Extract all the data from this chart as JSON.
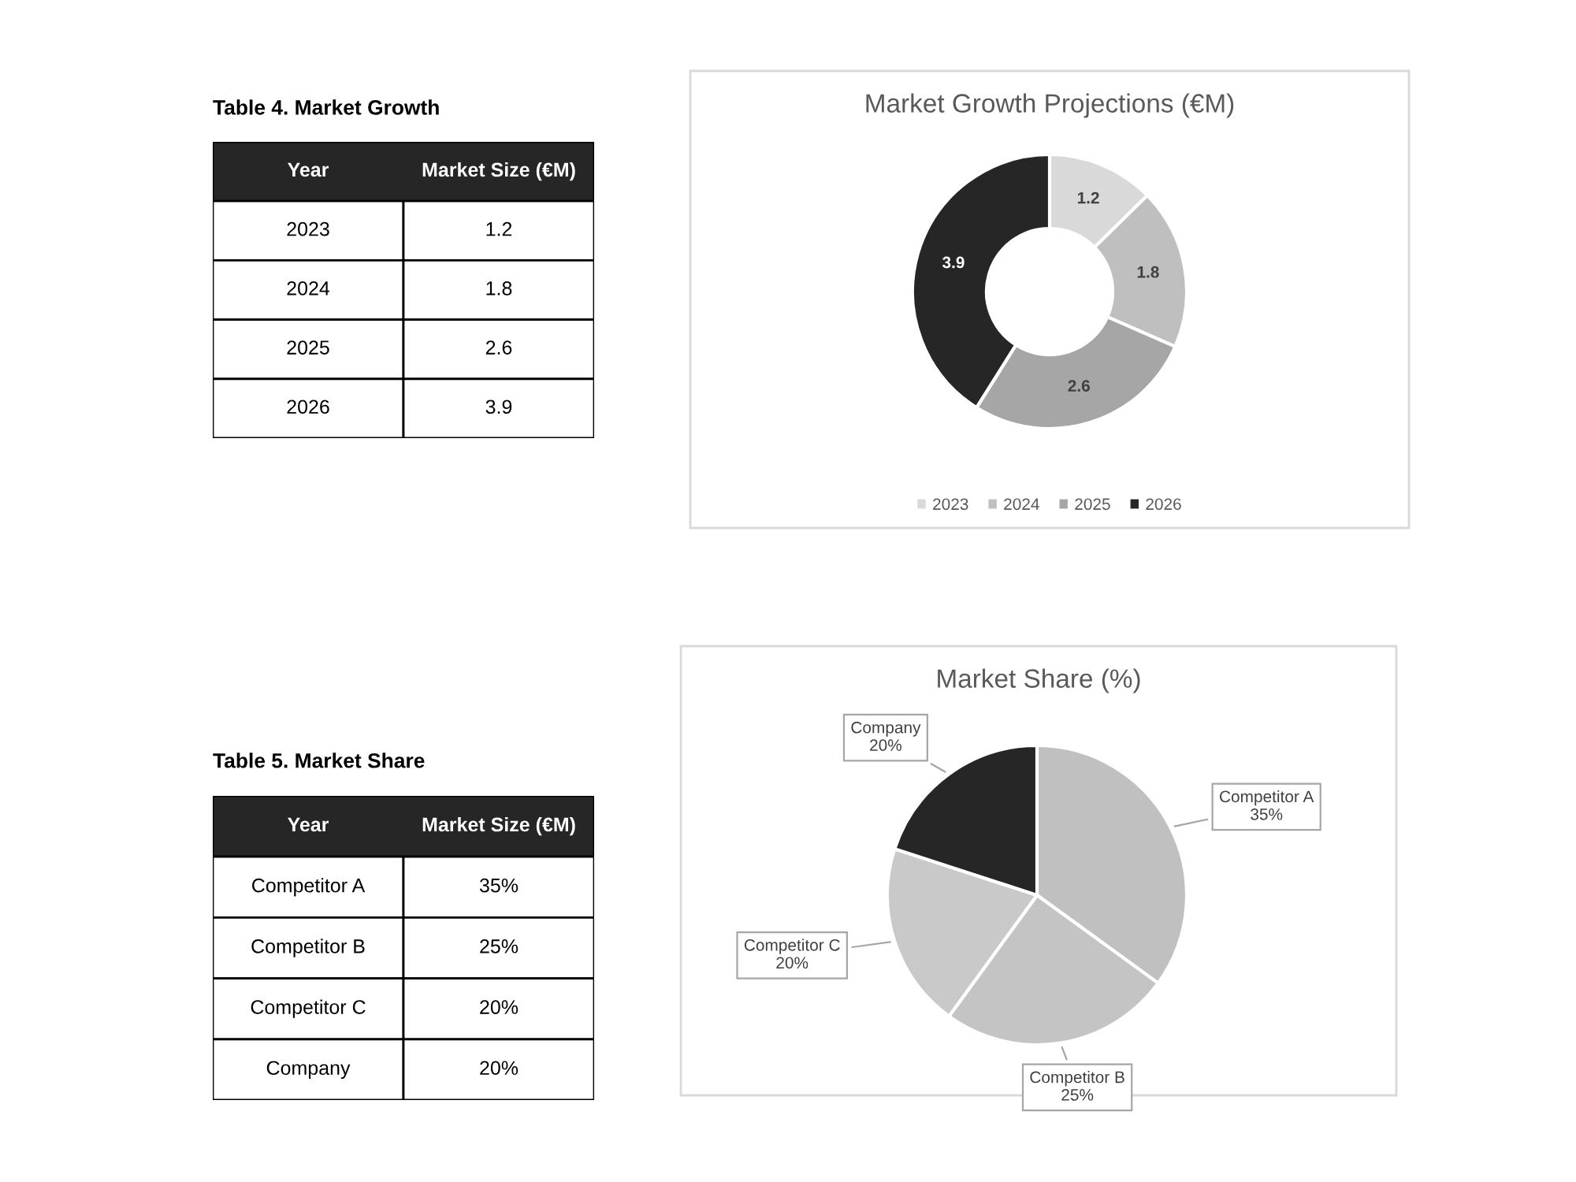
{
  "chart_data": [
    {
      "type": "donut",
      "title": "Market Growth Projections (€M)",
      "annotations": [
        "Table 4. Market Growth",
        "Year",
        "Market Size (€M)",
        "1.2",
        "1.8",
        "2.6",
        "3.9"
      ],
      "categories": [
        "2023",
        "2024",
        "2025",
        "2026"
      ],
      "values": [
        1.2,
        1.8,
        2.6,
        3.9
      ],
      "colors": [
        "#d9d9d9",
        "#bfbfbf",
        "#a6a6a6",
        "#262626"
      ],
      "data_labels": true,
      "legend": "bottom"
    },
    {
      "type": "pie",
      "title": "Market Share (%)",
      "annotations": [
        "Table 5. Market Share",
        "Year",
        "Market Size (€M)"
      ],
      "categories": [
        "Competitor A",
        "Competitor B",
        "Competitor C",
        "Company"
      ],
      "values": [
        35,
        25,
        20,
        20
      ],
      "colors": [
        "#c0c0c0",
        "#c4c4c4",
        "#c9c9c9",
        "#262626"
      ],
      "value_labels": [
        "35%",
        "25%",
        "20%",
        "20%"
      ]
    }
  ]
}
